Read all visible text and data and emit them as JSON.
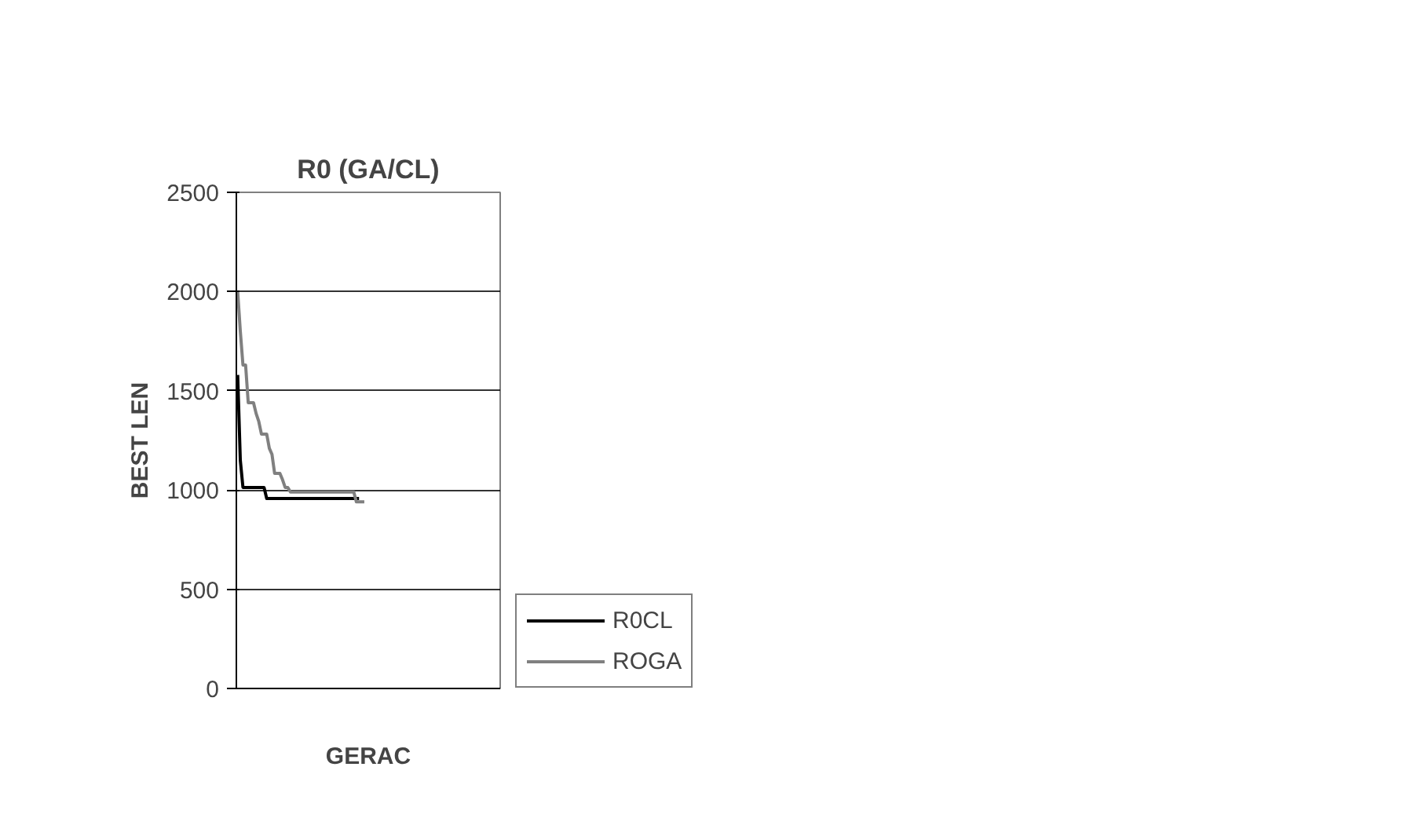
{
  "chart_data": {
    "type": "line",
    "title": "R0 (GA/CL)",
    "xlabel": "GERAC",
    "ylabel": "BEST LEN",
    "categories": [
      null,
      null,
      null,
      null,
      null,
      null,
      null,
      null,
      null,
      null,
      null,
      null,
      null,
      null,
      null,
      null,
      null,
      null,
      null,
      null,
      null,
      null,
      null,
      null,
      null,
      null,
      null,
      null,
      null,
      null,
      null,
      null,
      null,
      null,
      null,
      null,
      null,
      null,
      null,
      null,
      null,
      null,
      null,
      null,
      null,
      null,
      null,
      null,
      null,
      null,
      null,
      null,
      null,
      null,
      null,
      null,
      null,
      null,
      null,
      null,
      null,
      null,
      null,
      null,
      null,
      null,
      null,
      null,
      null,
      null,
      null,
      null,
      null,
      null,
      null,
      null,
      null,
      null,
      null,
      null,
      null,
      null,
      null,
      null,
      null,
      null,
      null,
      null,
      null,
      null,
      null,
      null,
      null,
      null,
      null,
      null,
      null,
      null,
      null,
      null
    ],
    "series": [
      {
        "name": "R0CL",
        "color": "#000000",
        "values": [
          1580,
          1150,
          1013,
          1013,
          1013,
          1013,
          1013,
          1013,
          1013,
          1013,
          1013,
          957,
          957,
          957,
          957,
          957,
          957,
          957,
          957,
          957,
          957,
          957,
          957,
          957,
          957,
          957,
          957,
          957,
          957,
          957,
          957,
          957,
          957,
          957,
          957,
          957,
          957,
          957,
          957,
          957,
          957,
          957,
          957,
          957,
          957,
          957,
          957,
          null,
          null,
          null,
          null,
          null,
          null,
          null,
          null,
          null,
          null,
          null,
          null,
          null,
          null,
          null,
          null,
          null,
          null,
          null,
          null,
          null,
          null,
          null,
          null,
          null,
          null,
          null,
          null,
          null,
          null,
          null,
          null,
          null,
          null,
          null,
          null,
          null,
          null,
          null,
          null,
          null,
          null,
          null,
          null,
          null,
          null,
          null,
          null,
          null,
          null,
          null,
          null,
          null
        ]
      },
      {
        "name": "ROGA",
        "color": "#808080",
        "values": [
          2000,
          1800,
          1630,
          1630,
          1440,
          1440,
          1440,
          1385,
          1345,
          1282,
          1282,
          1282,
          1210,
          1180,
          1084,
          1084,
          1084,
          1052,
          1013,
          1013,
          990,
          990,
          990,
          990,
          990,
          990,
          990,
          990,
          990,
          990,
          990,
          990,
          990,
          990,
          990,
          990,
          990,
          990,
          990,
          990,
          990,
          990,
          990,
          990,
          990,
          940,
          940,
          940,
          940,
          null,
          null,
          null,
          null,
          null,
          null,
          null,
          null,
          null,
          null,
          null,
          null,
          null,
          null,
          null,
          null,
          null,
          null,
          null,
          null,
          null,
          null,
          null,
          null,
          null,
          null,
          null,
          null,
          null,
          null,
          null,
          null,
          null,
          null,
          null,
          null,
          null,
          null,
          null,
          null,
          null,
          null,
          null,
          null,
          null,
          null,
          null,
          null,
          null,
          null,
          null
        ]
      }
    ],
    "ylim": [
      0,
      2500
    ],
    "yticks": [
      0,
      500,
      1000,
      1500,
      2000,
      2500
    ],
    "grid": "y",
    "legend": "right",
    "line_style": "solid"
  }
}
